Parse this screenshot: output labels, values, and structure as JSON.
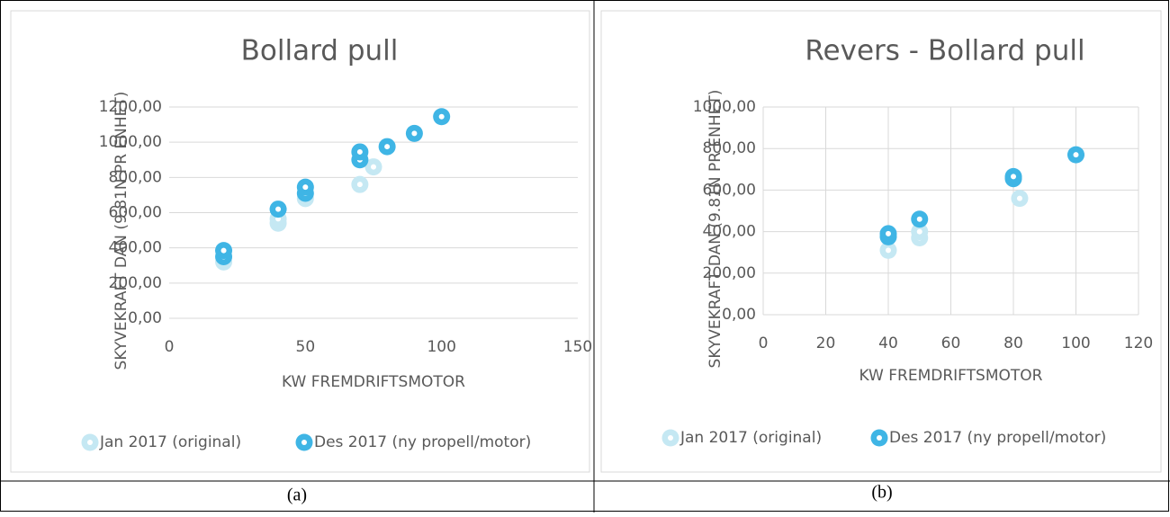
{
  "chart_data": [
    {
      "type": "scatter",
      "title": "Bollard pull",
      "x_label": "KW FREMDRIFTSMOTOR",
      "y_label": "SKYVEKRAFT DAN (9.81N PR ENHET)",
      "xlim": [
        0,
        150
      ],
      "xticks": [
        0,
        50,
        100,
        150
      ],
      "ylim": [
        0,
        1200
      ],
      "yticks": [
        {
          "value": 0,
          "label": "0,00"
        },
        {
          "value": 200,
          "label": "200,00"
        },
        {
          "value": 400,
          "label": "400,00"
        },
        {
          "value": 600,
          "label": "600,00"
        },
        {
          "value": 800,
          "label": "800,00"
        },
        {
          "value": 1000,
          "label": "1000,00"
        },
        {
          "value": 1200,
          "label": "1200,00"
        }
      ],
      "xgrid": false,
      "ygrid": true,
      "series": [
        {
          "name": "Jan 2017 (original)",
          "color": "#c5e8f3",
          "x": [
            20,
            40,
            40,
            50,
            70,
            75
          ],
          "values": [
            320,
            540,
            565,
            680,
            760,
            860
          ]
        },
        {
          "name": "Des 2017 (ny propell/motor)",
          "color": "#3fb5e5",
          "x": [
            20,
            20,
            40,
            50,
            50,
            70,
            70,
            80,
            90,
            100
          ],
          "values": [
            350,
            385,
            620,
            710,
            745,
            900,
            945,
            975,
            1050,
            1145
          ]
        }
      ]
    },
    {
      "type": "scatter",
      "title": "Revers - Bollard pull",
      "x_label": "KW FREMDRIFTSMOTOR",
      "y_label": "SKYVEKRAFT DAN (9.81N PR ENHET)",
      "xlim": [
        0,
        120
      ],
      "xticks": [
        0,
        20,
        40,
        60,
        80,
        100,
        120
      ],
      "ylim": [
        0,
        1000
      ],
      "yticks": [
        {
          "value": 0,
          "label": "0,00"
        },
        {
          "value": 200,
          "label": "200,00"
        },
        {
          "value": 400,
          "label": "400,00"
        },
        {
          "value": 600,
          "label": "600,00"
        },
        {
          "value": 800,
          "label": "800,00"
        },
        {
          "value": 1000,
          "label": "1000,00"
        }
      ],
      "xgrid": true,
      "ygrid": true,
      "series": [
        {
          "name": "Jan 2017 (original)",
          "color": "#c5e8f3",
          "x": [
            40,
            50,
            50,
            82
          ],
          "values": [
            310,
            370,
            400,
            560
          ]
        },
        {
          "name": "Des 2017 (ny propell/motor)",
          "color": "#3fb5e5",
          "x": [
            40,
            40,
            50,
            80,
            80,
            100
          ],
          "values": [
            375,
            390,
            460,
            655,
            665,
            770
          ]
        }
      ]
    }
  ],
  "captions": [
    "(a)",
    "(b)"
  ]
}
